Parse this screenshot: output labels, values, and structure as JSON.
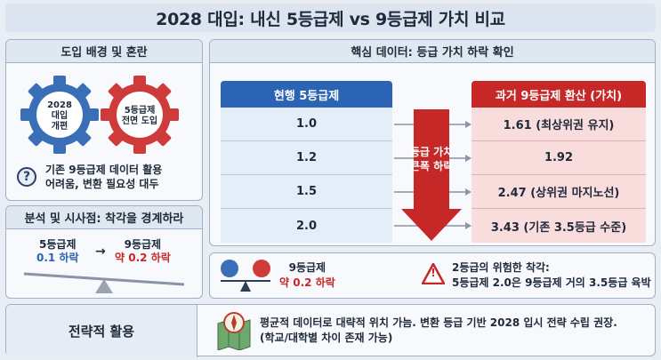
{
  "title": "2028 대입: 내신 5등급제 vs 9등급제 가치 비교",
  "background": {
    "heading": "도입 배경 및 혼란",
    "gear_blue": [
      "2028",
      "대입",
      "개편"
    ],
    "gear_red": [
      "5등급제",
      "전면 도입"
    ],
    "note_line1": "기존 9등급제 데이터 활용",
    "note_line2": "어려움, 변환 필요성 대두",
    "question_mark": "?"
  },
  "analysis": {
    "heading": "분석 및 시사점: 착각을 경계하라",
    "left_title": "5등급제",
    "left_value": "0.1 하락",
    "arrow": "→",
    "right_title": "9등급제",
    "right_value": "약 0.2 하락"
  },
  "core": {
    "heading": "핵심 데이터: 등급 가치 하락 확인",
    "left_header": "현행 5등급제",
    "right_header": "과거 9등급제 환산 (가치)",
    "arrow_label_1": "등급 가치",
    "arrow_label_2": "큰폭 하락",
    "rows": [
      {
        "five": "1.0",
        "nine": "1.61 (최상위권 유지)"
      },
      {
        "five": "1.2",
        "nine": "1.92"
      },
      {
        "five": "1.5",
        "nine": "2.47 (상위권 마지노선)"
      },
      {
        "five": "2.0",
        "nine": "3.43 (기존 3.5등급 수준)"
      }
    ]
  },
  "warning": {
    "scale_title": "9등급제",
    "scale_value": "약 0.2 하락",
    "alert_title": "2등급의 위험한 착각:",
    "alert_text": "5등급제 2.0은 9등급제 거의 3.5등급 육박",
    "alert_symbol": "!"
  },
  "strategy": {
    "heading": "전략적 활용",
    "line1": "평균적 데이터로 대략적 위치 가늠. 변환 등급 기반 2028 입시 전략 수립 권장.",
    "line2": "(학교/대학별 차이 존재 가능)"
  },
  "colors": {
    "blue_header": "#2b63b5",
    "red_header": "#c62828",
    "arrow_red": "#c62828",
    "gear_blue": "#3a6fb8",
    "gear_red": "#cf3b3b"
  }
}
